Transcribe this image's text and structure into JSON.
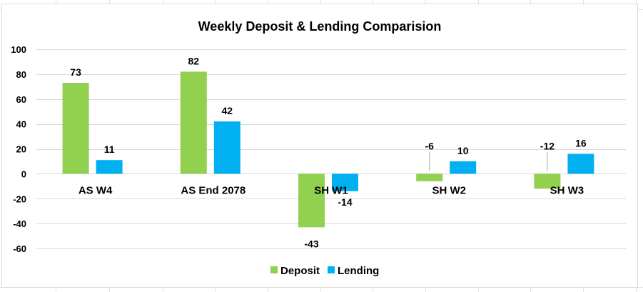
{
  "chart_data": {
    "type": "bar",
    "title": "Weekly Deposit & Lending Comparision",
    "xlabel": "",
    "ylabel": "",
    "categories": [
      "AS W4",
      "AS End 2078",
      "SH W1",
      "SH W2",
      "SH W3"
    ],
    "series": [
      {
        "name": "Deposit",
        "values": [
          73,
          82,
          -43,
          -6,
          -12
        ],
        "color": "#92d050"
      },
      {
        "name": "Lending",
        "values": [
          11,
          42,
          -14,
          10,
          16
        ],
        "color": "#00b0f0"
      }
    ],
    "ylim": [
      -60,
      100
    ],
    "yticks": [
      100,
      80,
      60,
      40,
      20,
      0,
      -20,
      -40,
      -60
    ],
    "grid": true,
    "legend_position": "bottom"
  }
}
